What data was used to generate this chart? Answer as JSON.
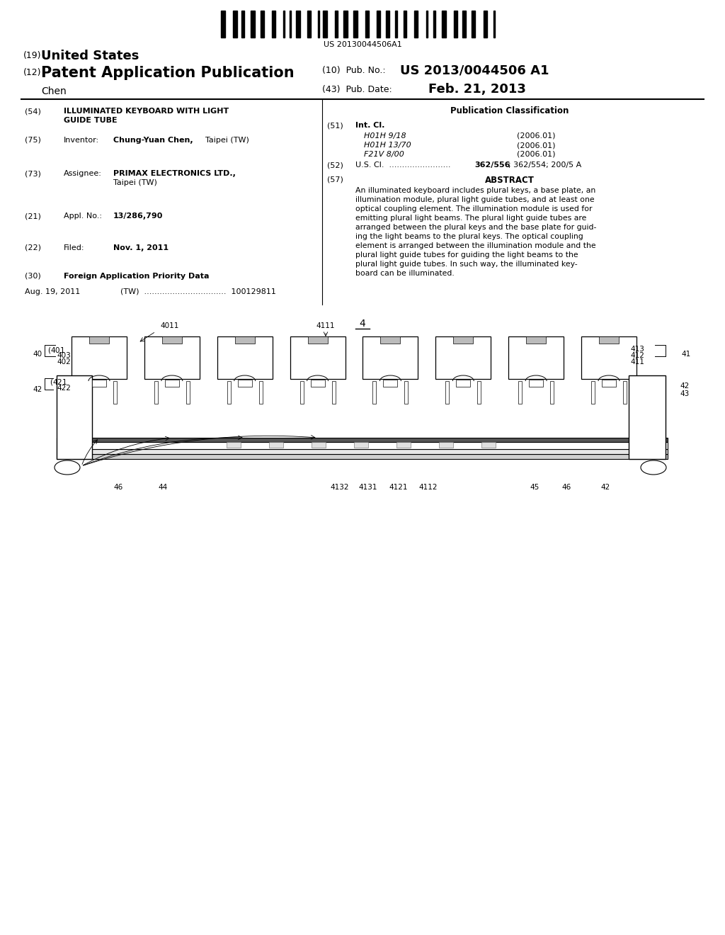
{
  "bg_color": "#ffffff",
  "barcode_text": "US 20130044506A1",
  "pub_no_value": "US 2013/0044506 A1",
  "pub_date_value": "Feb. 21, 2013",
  "abstract_lines": [
    "An illuminated keyboard includes plural keys, a base plate, an",
    "illumination module, plural light guide tubes, and at least one",
    "optical coupling element. The illumination module is used for",
    "emitting plural light beams. The plural light guide tubes are",
    "arranged between the plural keys and the base plate for guid-",
    "ing the light beams to the plural keys. The optical coupling",
    "element is arranged between the illumination module and the",
    "plural light guide tubes for guiding the light beams to the",
    "plural light guide tubes. In such way, the illuminated key-",
    "board can be illuminated."
  ],
  "class1": "H01H 9/18",
  "class2": "H01H 13/70",
  "class3": "F21V 8/00",
  "year": "(2006.01)",
  "us_cl_bold": "362/556",
  "us_cl_rest": "; 362/554; 200/5 A",
  "fig_number": "4"
}
